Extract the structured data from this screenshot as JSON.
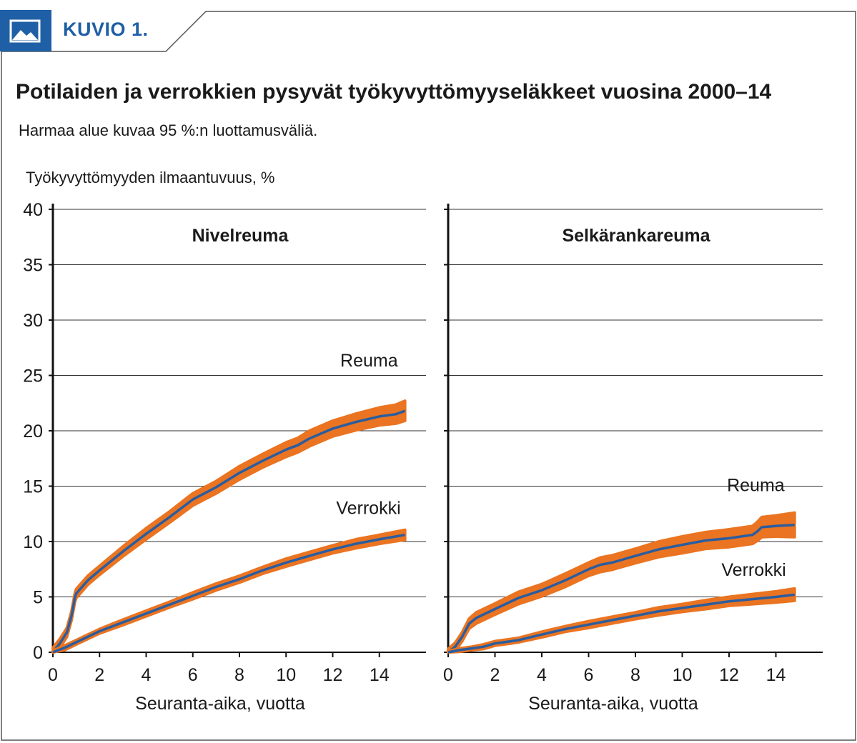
{
  "header": {
    "label": "KUVIO 1.",
    "icon": "image-icon",
    "accent": "#1f5fa6"
  },
  "title": "Potilaiden ja verrokkien pysyvät työkyvyttömyyseläkkeet vuosina 2000–14",
  "subtitle": "Harmaa alue kuvaa 95 %:n luottamusväliä.",
  "ylabel": "Työkyvyttömyyden ilmaantuvuus, %",
  "colors": {
    "line": "#2a5d9f",
    "band": "#ea7421",
    "grid": "#333333"
  },
  "chart_data": [
    {
      "type": "line",
      "title": "Nivelreuma",
      "xlabel": "Seuranta-aika, vuotta",
      "ylabel": "Työkyvyttömyyden ilmaantuvuus, %",
      "xlim": [
        0,
        16
      ],
      "ylim": [
        0,
        40
      ],
      "xticks": [
        0,
        2,
        4,
        6,
        8,
        10,
        12,
        14
      ],
      "yticks": [
        0,
        5,
        10,
        15,
        20,
        25,
        30,
        35,
        40
      ],
      "grid": true,
      "series": [
        {
          "name": "Reuma",
          "x": [
            0,
            0.3,
            0.6,
            0.8,
            0.95,
            1.0,
            1.5,
            2,
            3,
            4,
            5,
            6,
            7,
            8,
            9,
            10,
            10.5,
            11,
            12,
            13,
            14,
            14.7,
            15.1
          ],
          "y": [
            0,
            0.8,
            1.8,
            3.3,
            5.0,
            5.3,
            6.5,
            7.4,
            9.1,
            10.7,
            12.2,
            13.8,
            14.9,
            16.2,
            17.3,
            18.3,
            18.7,
            19.3,
            20.2,
            20.8,
            21.3,
            21.5,
            21.8
          ],
          "ci": [
            0.4,
            0.4,
            0.4,
            0.4,
            0.4,
            0.4,
            0.4,
            0.4,
            0.45,
            0.5,
            0.5,
            0.55,
            0.55,
            0.6,
            0.6,
            0.65,
            0.65,
            0.7,
            0.7,
            0.75,
            0.8,
            0.85,
            0.9
          ]
        },
        {
          "name": "Verrokki",
          "x": [
            0,
            0.5,
            1,
            2,
            3,
            4,
            5,
            6,
            7,
            8,
            9,
            10,
            11,
            12,
            13,
            14,
            15.1
          ],
          "y": [
            0,
            0.4,
            0.9,
            1.9,
            2.7,
            3.5,
            4.3,
            5.1,
            5.9,
            6.6,
            7.4,
            8.1,
            8.7,
            9.3,
            9.8,
            10.2,
            10.6
          ],
          "ci": [
            0.15,
            0.2,
            0.2,
            0.2,
            0.25,
            0.25,
            0.25,
            0.3,
            0.3,
            0.3,
            0.3,
            0.35,
            0.35,
            0.35,
            0.4,
            0.4,
            0.45
          ]
        }
      ]
    },
    {
      "type": "line",
      "title": "Selkärankareuma",
      "xlabel": "Seuranta-aika, vuotta",
      "ylabel": "",
      "xlim": [
        0,
        16
      ],
      "ylim": [
        0,
        40
      ],
      "xticks": [
        0,
        2,
        4,
        6,
        8,
        10,
        12,
        14
      ],
      "yticks": [
        0,
        5,
        10,
        15,
        20,
        25,
        30,
        35,
        40
      ],
      "grid": true,
      "series": [
        {
          "name": "Reuma",
          "x": [
            0,
            0.3,
            0.6,
            0.9,
            1.2,
            2,
            3,
            4,
            5,
            6,
            6.5,
            7,
            8,
            9,
            10,
            11,
            12,
            13,
            13.2,
            13.4,
            14,
            14.8
          ],
          "y": [
            0,
            0.5,
            1.4,
            2.6,
            3.1,
            3.9,
            4.9,
            5.6,
            6.5,
            7.5,
            7.9,
            8.1,
            8.7,
            9.3,
            9.7,
            10.1,
            10.3,
            10.6,
            10.9,
            11.3,
            11.4,
            11.5
          ],
          "ci": [
            0.3,
            0.35,
            0.4,
            0.45,
            0.5,
            0.5,
            0.55,
            0.55,
            0.6,
            0.6,
            0.65,
            0.65,
            0.65,
            0.7,
            0.75,
            0.75,
            0.8,
            0.8,
            0.85,
            0.9,
            0.95,
            1.1
          ]
        },
        {
          "name": "Verrokki",
          "x": [
            0,
            0.5,
            1,
            1.5,
            2,
            2.7,
            3,
            4,
            5,
            6,
            7,
            8,
            9,
            10,
            11,
            12,
            13,
            14,
            14.8
          ],
          "y": [
            0,
            0.2,
            0.35,
            0.5,
            0.8,
            1.0,
            1.1,
            1.6,
            2.1,
            2.5,
            2.9,
            3.3,
            3.7,
            4.0,
            4.3,
            4.6,
            4.8,
            5.0,
            5.2
          ],
          "ci": [
            0.1,
            0.15,
            0.15,
            0.2,
            0.2,
            0.2,
            0.2,
            0.25,
            0.25,
            0.3,
            0.3,
            0.3,
            0.35,
            0.35,
            0.4,
            0.4,
            0.45,
            0.5,
            0.55
          ]
        }
      ]
    }
  ]
}
